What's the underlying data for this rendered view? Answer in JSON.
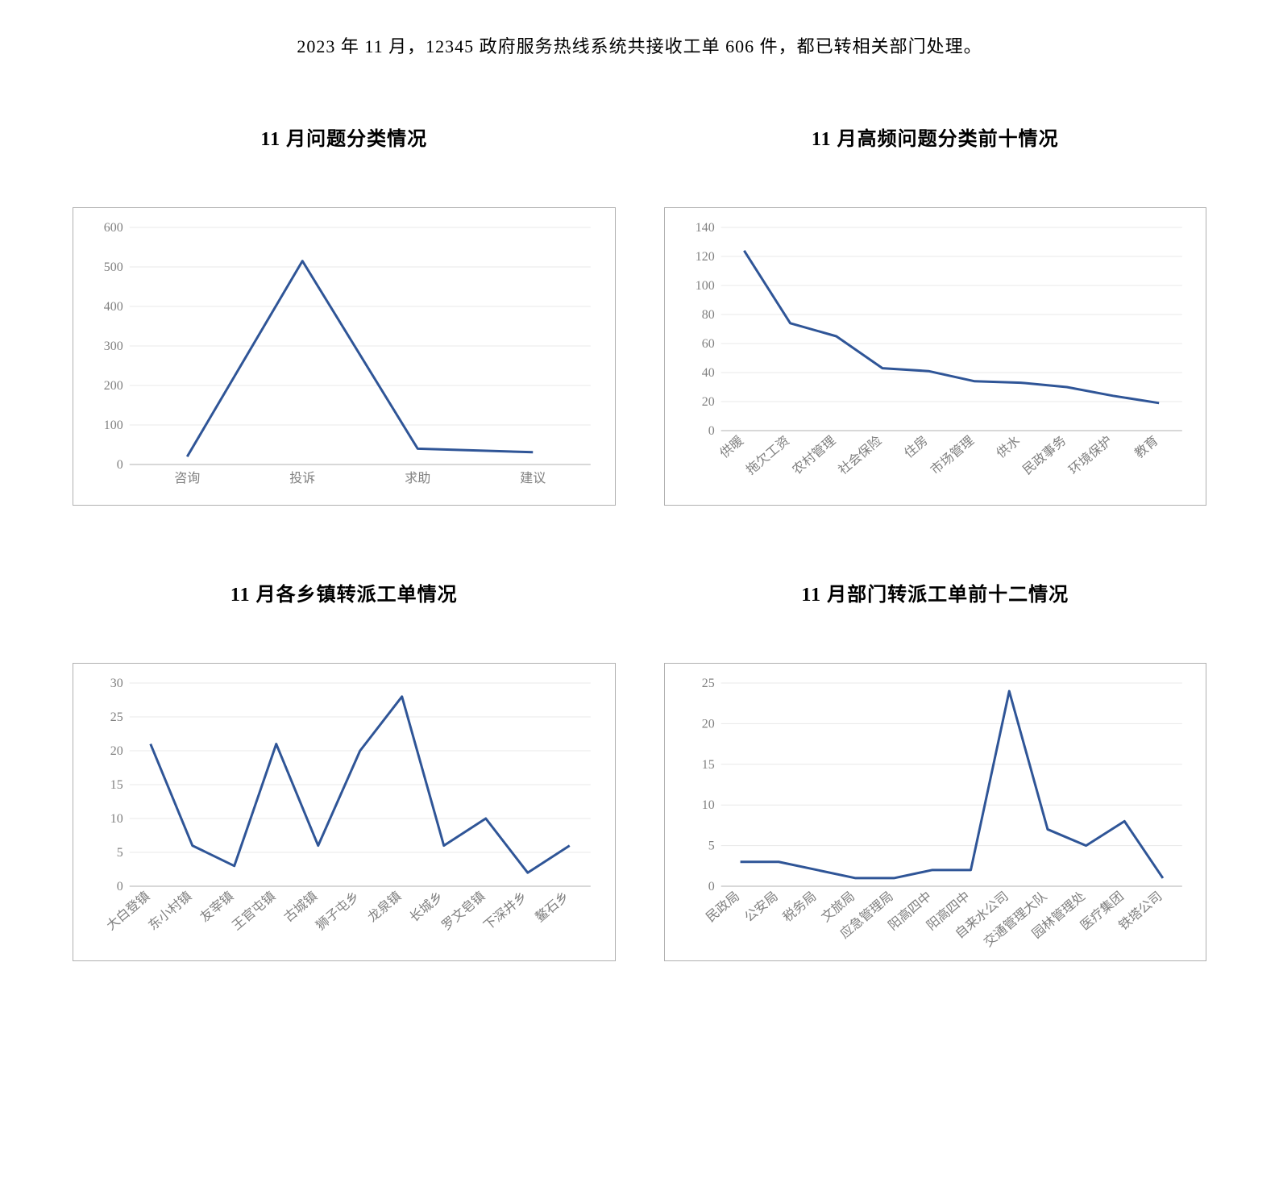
{
  "header": "2023 年 11 月，12345 政府服务热线系统共接收工单 606 件，都已转相关部门处理。",
  "charts": {
    "c1": {
      "title": "11 月问题分类情况",
      "type": "line",
      "categories": [
        "咨询",
        "投诉",
        "求助",
        "建议"
      ],
      "values": [
        20,
        515,
        40,
        31
      ],
      "ylim": [
        0,
        600
      ],
      "ytick_step": 100,
      "line_color": "#2f5597",
      "line_width": 3,
      "grid_color": "#e8e8e8",
      "axis_color": "#b0b0b0",
      "label_color": "#808080",
      "label_fontsize": 16,
      "rotate_x_labels": false
    },
    "c2": {
      "title": "11 月高频问题分类前十情况",
      "type": "line",
      "categories": [
        "供暖",
        "拖欠工资",
        "农村管理",
        "社会保险",
        "住房",
        "市场管理",
        "供水",
        "民政事务",
        "环境保护",
        "教育"
      ],
      "values": [
        124,
        74,
        65,
        43,
        41,
        34,
        33,
        30,
        24,
        19
      ],
      "ylim": [
        0,
        140
      ],
      "ytick_step": 20,
      "line_color": "#2f5597",
      "line_width": 3,
      "grid_color": "#e8e8e8",
      "axis_color": "#b0b0b0",
      "label_color": "#808080",
      "label_fontsize": 16,
      "rotate_x_labels": true
    },
    "c3": {
      "title": "11 月各乡镇转派工单情况",
      "type": "line",
      "categories": [
        "大白登镇",
        "东小村镇",
        "友宰镇",
        "王官屯镇",
        "古城镇",
        "狮子屯乡",
        "龙泉镇",
        "长城乡",
        "罗文皂镇",
        "下深井乡",
        "鳌石乡"
      ],
      "values": [
        21,
        6,
        3,
        21,
        6,
        20,
        28,
        6,
        10,
        2,
        6
      ],
      "ylim": [
        0,
        30
      ],
      "ytick_step": 5,
      "line_color": "#2f5597",
      "line_width": 3,
      "grid_color": "#e8e8e8",
      "axis_color": "#b0b0b0",
      "label_color": "#808080",
      "label_fontsize": 16,
      "rotate_x_labels": true
    },
    "c4": {
      "title": "11 月部门转派工单前十二情况",
      "type": "line",
      "categories": [
        "民政局",
        "公安局",
        "税务局",
        "文旅局",
        "应急管理局",
        "阳高四中",
        "阳高四中",
        "自来水公司",
        "交通管理大队",
        "园林管理处",
        "医疗集团",
        "铁塔公司"
      ],
      "values": [
        3,
        3,
        2,
        1,
        1,
        2,
        2,
        24,
        7,
        5,
        8,
        1
      ],
      "ylim": [
        0,
        25
      ],
      "ytick_step": 5,
      "line_color": "#2f5597",
      "line_width": 3,
      "grid_color": "#e8e8e8",
      "axis_color": "#b0b0b0",
      "label_color": "#808080",
      "label_fontsize": 16,
      "rotate_x_labels": true
    }
  }
}
